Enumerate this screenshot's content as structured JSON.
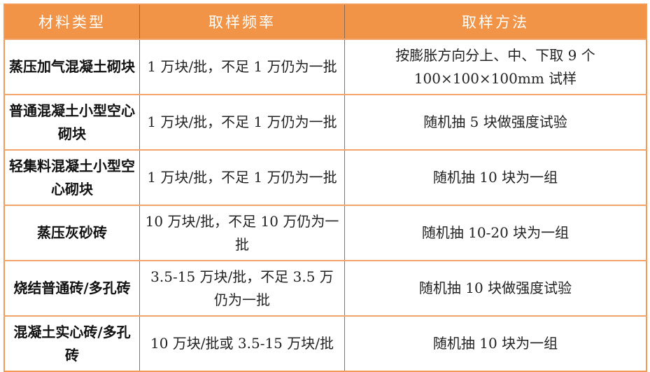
{
  "header": [
    "材料类型",
    "取样频率",
    "取样方法"
  ],
  "rows": [
    {
      "material": "蒸压加气混凝土砌块",
      "frequency": "1 万块/批，不足 1 万仍为一批",
      "method": "按膨胀方向分上、中、下取 9 个 100×100×100mm 试样"
    },
    {
      "material": "普通混凝土小型空心砌块",
      "frequency": "1 万块/批，不足 1 万仍为一批",
      "method": "随机抽 5 块做强度试验"
    },
    {
      "material": "轻集料混凝土小型空心砌块",
      "frequency": "1 万块/批，不足 1 万仍为一批",
      "method": "随机抽 10 块为一组"
    },
    {
      "material": "蒸压灰砂砖",
      "frequency": "10 万块/批，不足 10 万仍为一批",
      "method": "随机抽 10-20 块为一组"
    },
    {
      "material": "烧结普通砖/多孔砖",
      "frequency": "3.5-15 万块/批，不足 3.5 万仍为一批",
      "method": "随机抽 10 块做强度试验"
    },
    {
      "material": "混凝土实心砖/多孔砖",
      "frequency": "10 万块/批或 3.5-15 万块/批",
      "method": "随机抽 10 块为一组"
    }
  ],
  "colors": {
    "header_bg": "#F19448",
    "header_text": "#FFFFFF",
    "row_border": "#F3A46A"
  }
}
